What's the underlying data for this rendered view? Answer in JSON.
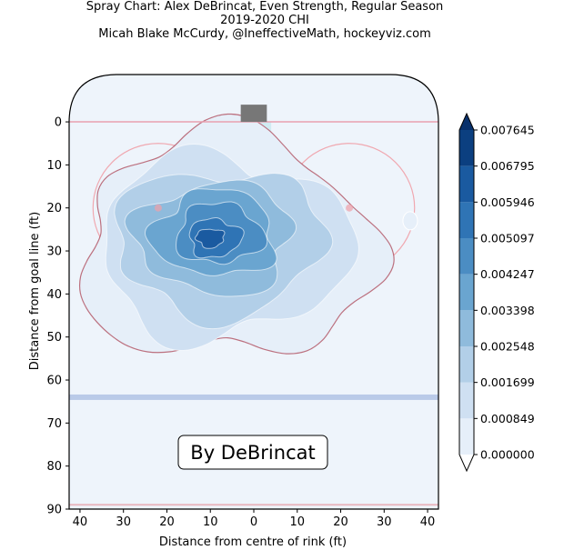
{
  "chart_data": {
    "type": "heatmap",
    "subtype": "filled-contour shot density (spray chart) on hockey rink half",
    "title_lines": [
      "Spray Chart: Alex DeBrincat, Even Strength, Regular Season",
      "2019-2020 CHI",
      "Micah Blake McCurdy, @IneffectiveMath, hockeyviz.com"
    ],
    "xlabel": "Distance from centre of rink (ft)",
    "ylabel": "Distance from goal line (ft)",
    "xlim": [
      -42.5,
      42.5
    ],
    "ylim": [
      90,
      -11
    ],
    "x_ticks": [
      -40,
      -30,
      -20,
      -10,
      0,
      10,
      20,
      30,
      40
    ],
    "x_tick_labels": [
      "40",
      "30",
      "20",
      "10",
      "0",
      "10",
      "20",
      "30",
      "40"
    ],
    "y_ticks": [
      0,
      10,
      20,
      30,
      40,
      50,
      60,
      70,
      80,
      90
    ],
    "y_tick_labels": [
      "0",
      "10",
      "20",
      "30",
      "40",
      "50",
      "60",
      "70",
      "80",
      "90"
    ],
    "annotation": "By DeBrincat",
    "colorbar": {
      "levels": [
        0.0,
        0.000849,
        0.001699,
        0.002548,
        0.003398,
        0.004247,
        0.005097,
        0.005946,
        0.006795,
        0.007645
      ],
      "tick_labels": [
        "0.000000",
        "0.000849",
        "0.001699",
        "0.002548",
        "0.003398",
        "0.004247",
        "0.005097",
        "0.005946",
        "0.006795",
        "0.007645"
      ],
      "extend": "both",
      "colormap": "Blues",
      "colors": [
        "#ffffff",
        "#e6eff9",
        "#cfe0f2",
        "#b2cfe8",
        "#8fbbdc",
        "#6aa5d0",
        "#4b8dc3",
        "#2f74b5",
        "#1a5aa0",
        "#0b3f80",
        "#08306b"
      ]
    },
    "density_regions": [
      {
        "level": 1,
        "center": [
          -6,
          29
        ],
        "radius": [
          34,
          26
        ]
      },
      {
        "level": 2,
        "center": [
          -7,
          29
        ],
        "radius": [
          29,
          21
        ]
      },
      {
        "level": 3,
        "center": [
          -8,
          28
        ],
        "radius": [
          24,
          17
        ]
      },
      {
        "level": 4,
        "center": [
          -9,
          27
        ],
        "radius": [
          18,
          13
        ]
      },
      {
        "level": 5,
        "center": [
          -9,
          26
        ],
        "radius": [
          14,
          10
        ]
      },
      {
        "level": 6,
        "center": [
          -8,
          26
        ],
        "radius": [
          10,
          7
        ]
      },
      {
        "level": 7,
        "center": [
          -9,
          27
        ],
        "radius": [
          6,
          4.5
        ]
      },
      {
        "level": 8,
        "center": [
          -10,
          27
        ],
        "radius": [
          3.2,
          2.2
        ]
      }
    ],
    "rink": {
      "goal_line_y": 0,
      "blue_line_y": 64,
      "end_line_y": 89,
      "faceoff_circles_x": [
        -22,
        22
      ],
      "faceoff_circle_y": 20,
      "faceoff_radius": 15,
      "colors": {
        "ice": "#eef4fb",
        "goal_line": "#e8a0b0",
        "blue_line": "#b9cae8",
        "net": "#777777",
        "crease": "#c8e8f0",
        "board": "#000000",
        "circle": "#f0a8b0"
      }
    }
  }
}
